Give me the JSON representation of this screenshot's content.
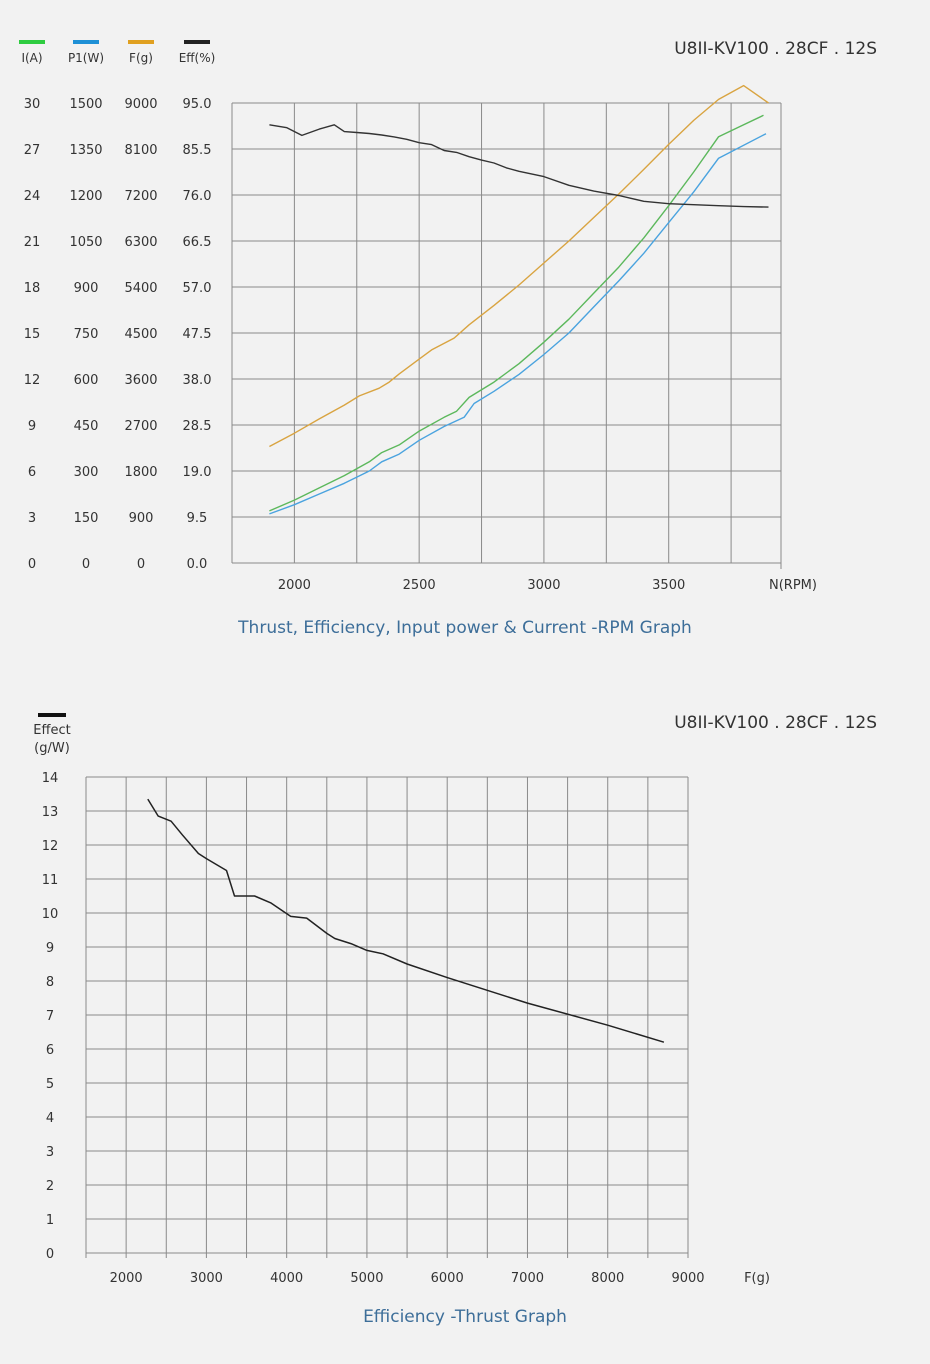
{
  "chart_data": [
    {
      "type": "line",
      "model_label": "U8II-KV100 . 28CF . 12S",
      "caption": "Thrust, Efficiency, Input power & Current -RPM Graph",
      "x_unit_label": "N(RPM)",
      "x_ticks": [
        2000,
        2500,
        3000,
        3500
      ],
      "xlim": [
        1750,
        3950
      ],
      "axes": [
        {
          "name": "I(A)",
          "color": "#2ecc40",
          "ticks": [
            "0",
            "3",
            "6",
            "9",
            "12",
            "15",
            "18",
            "21",
            "24",
            "27",
            "30"
          ],
          "ylim": [
            0,
            30
          ]
        },
        {
          "name": "P1(W)",
          "color": "#1e90d6",
          "ticks": [
            "0",
            "150",
            "300",
            "450",
            "600",
            "750",
            "900",
            "1050",
            "1200",
            "1350",
            "1500"
          ],
          "ylim": [
            0,
            1500
          ]
        },
        {
          "name": "F(g)",
          "color": "#e0a020",
          "ticks": [
            "0",
            "900",
            "1800",
            "2700",
            "3600",
            "4500",
            "5400",
            "6300",
            "7200",
            "8100",
            "9000"
          ],
          "ylim": [
            0,
            9000
          ]
        },
        {
          "name": "Eff(%)",
          "color": "#222222",
          "ticks": [
            "0.0",
            "9.5",
            "19.0",
            "28.5",
            "38.0",
            "47.5",
            "57.0",
            "66.5",
            "76.0",
            "85.5",
            "95.0"
          ],
          "ylim": [
            0,
            95
          ]
        }
      ],
      "series": [
        {
          "name": "I(A)",
          "axis": 0,
          "color": "#5cb85c",
          "x": [
            1900,
            2000,
            2100,
            2200,
            2300,
            2350,
            2420,
            2500,
            2600,
            2650,
            2700,
            2800,
            2900,
            3000,
            3100,
            3200,
            3300,
            3400,
            3500,
            3600,
            3700,
            3880
          ],
          "y": [
            3.4,
            4.1,
            4.9,
            5.7,
            6.6,
            7.2,
            7.7,
            8.6,
            9.5,
            9.9,
            10.8,
            11.8,
            13.0,
            14.4,
            15.9,
            17.6,
            19.3,
            21.2,
            23.3,
            25.5,
            27.8,
            29.2
          ]
        },
        {
          "name": "P1(W)",
          "axis": 1,
          "color": "#4aa3df",
          "x": [
            1900,
            2000,
            2100,
            2200,
            2300,
            2350,
            2420,
            2500,
            2600,
            2680,
            2720,
            2800,
            2900,
            3000,
            3100,
            3200,
            3300,
            3400,
            3500,
            3600,
            3700,
            3890
          ],
          "y": [
            160,
            190,
            225,
            260,
            300,
            330,
            355,
            400,
            445,
            475,
            520,
            560,
            615,
            680,
            750,
            835,
            920,
            1010,
            1110,
            1210,
            1320,
            1400
          ]
        },
        {
          "name": "F(g)",
          "axis": 2,
          "color": "#d9a441",
          "x": [
            1900,
            2000,
            2100,
            2200,
            2260,
            2340,
            2380,
            2420,
            2500,
            2550,
            2640,
            2700,
            2800,
            2900,
            3000,
            3100,
            3200,
            3300,
            3400,
            3500,
            3600,
            3700,
            3800,
            3900
          ],
          "y": [
            2280,
            2540,
            2820,
            3090,
            3270,
            3420,
            3540,
            3700,
            3990,
            4170,
            4400,
            4660,
            5040,
            5440,
            5870,
            6300,
            6760,
            7220,
            7700,
            8190,
            8660,
            9070,
            9340,
            9000
          ]
        },
        {
          "name": "Eff(%)",
          "axis": 3,
          "color": "#333333",
          "x": [
            1900,
            1970,
            2030,
            2100,
            2160,
            2200,
            2250,
            2300,
            2350,
            2400,
            2450,
            2500,
            2550,
            2600,
            2650,
            2700,
            2750,
            2800,
            2850,
            2900,
            3000,
            3100,
            3200,
            3300,
            3400,
            3500,
            3600,
            3700,
            3800,
            3900
          ],
          "y": [
            90.5,
            89.9,
            88.3,
            89.6,
            90.5,
            89.1,
            88.9,
            88.7,
            88.4,
            88.0,
            87.5,
            86.8,
            86.4,
            85.2,
            84.8,
            83.9,
            83.2,
            82.6,
            81.6,
            80.9,
            79.8,
            78.0,
            76.8,
            75.9,
            74.7,
            74.2,
            74.0,
            73.8,
            73.6,
            73.5
          ]
        }
      ]
    },
    {
      "type": "line",
      "model_label": "U8II-KV100 . 28CF . 12S",
      "caption": "Efficiency -Thrust Graph",
      "y_label": [
        "Effect",
        "(g/W)"
      ],
      "x_unit_label": "F(g)",
      "x_ticks": [
        2000,
        3000,
        4000,
        5000,
        6000,
        7000,
        8000,
        9000
      ],
      "y_ticks": [
        0,
        1,
        2,
        3,
        4,
        5,
        6,
        7,
        8,
        9,
        10,
        11,
        12,
        13,
        14
      ],
      "xlim": [
        1500,
        9000
      ],
      "ylim": [
        0,
        14
      ],
      "series": [
        {
          "name": "Effect",
          "color": "#222222",
          "x": [
            2270,
            2400,
            2560,
            2700,
            2900,
            3000,
            3250,
            3350,
            3600,
            3800,
            4050,
            4250,
            4500,
            4600,
            4800,
            5000,
            5200,
            5500,
            6000,
            7000,
            8000,
            8700
          ],
          "y": [
            13.35,
            12.85,
            12.7,
            12.3,
            11.75,
            11.6,
            11.25,
            10.5,
            10.5,
            10.3,
            9.9,
            9.85,
            9.4,
            9.25,
            9.1,
            8.9,
            8.8,
            8.5,
            8.1,
            7.35,
            6.7,
            6.2
          ]
        }
      ]
    }
  ]
}
